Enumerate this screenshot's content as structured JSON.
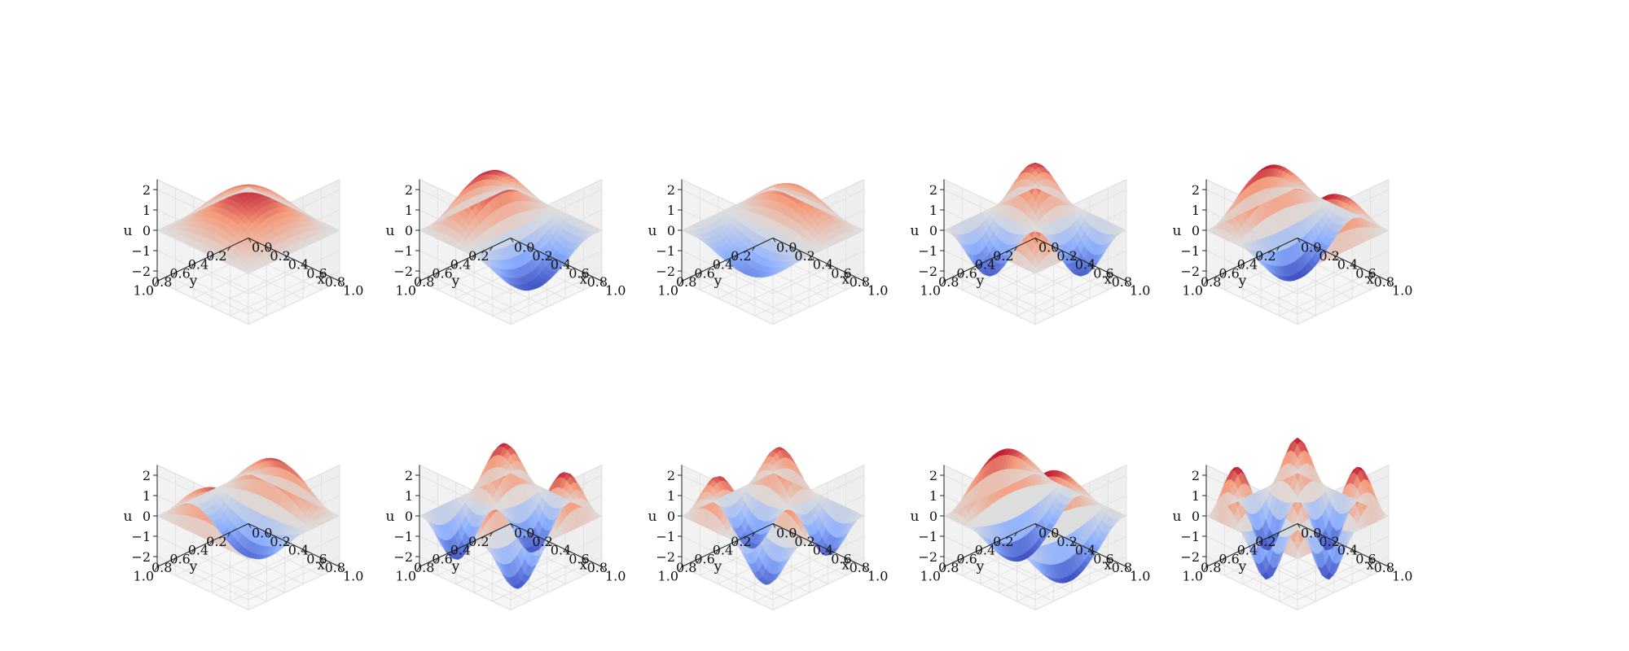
{
  "chart_data": [
    {
      "type": "surface3d",
      "panel": 1,
      "mode": [
        1,
        1
      ],
      "amplitude": 2.0,
      "xlabel": "x",
      "ylabel": "y",
      "zlabel": "u",
      "xlim": [
        0,
        1
      ],
      "ylim": [
        0,
        1
      ],
      "zlim": [
        -2.5,
        2.5
      ],
      "xticks": [
        "0.0",
        "0.2",
        "0.4",
        "0.6",
        "0.8",
        "1.0"
      ],
      "yticks": [
        "0.0",
        "0.2",
        "0.4",
        "0.6",
        "0.8",
        "1.0"
      ],
      "zticks": [
        "−2",
        "−1",
        "0",
        "1",
        "2"
      ],
      "colormap": "coolwarm",
      "grid": true
    },
    {
      "type": "surface3d",
      "panel": 2,
      "mode": [
        2,
        1
      ],
      "amplitude": 2.3,
      "xlabel": "x",
      "ylabel": "y",
      "zlabel": "u",
      "xlim": [
        0,
        1
      ],
      "ylim": [
        0,
        1
      ],
      "zlim": [
        -2.5,
        2.5
      ],
      "xticks": [
        "0.0",
        "0.2",
        "0.4",
        "0.6",
        "0.8",
        "1.0"
      ],
      "yticks": [
        "0.0",
        "0.2",
        "0.4",
        "0.6",
        "0.8",
        "1.0"
      ],
      "zticks": [
        "−2",
        "−1",
        "0",
        "1",
        "2"
      ],
      "colormap": "coolwarm",
      "grid": true
    },
    {
      "type": "surface3d",
      "panel": 3,
      "mode": [
        1,
        2
      ],
      "amplitude": 1.6,
      "xlabel": "x",
      "ylabel": "y",
      "zlabel": "u",
      "xlim": [
        0,
        1
      ],
      "ylim": [
        0,
        1
      ],
      "zlim": [
        -2.5,
        2.5
      ],
      "xticks": [
        "0.0",
        "0.2",
        "0.4",
        "0.6",
        "0.8",
        "1.0"
      ],
      "yticks": [
        "0.0",
        "0.2",
        "0.4",
        "0.6",
        "0.8",
        "1.0"
      ],
      "zticks": [
        "−2",
        "−1",
        "0",
        "1",
        "2"
      ],
      "colormap": "coolwarm",
      "grid": true
    },
    {
      "type": "surface3d",
      "panel": 4,
      "mode": [
        2,
        2
      ],
      "amplitude": 2.2,
      "xlabel": "x",
      "ylabel": "y",
      "zlabel": "u",
      "xlim": [
        0,
        1
      ],
      "ylim": [
        0,
        1
      ],
      "zlim": [
        -2.5,
        2.5
      ],
      "xticks": [
        "0.0",
        "0.2",
        "0.4",
        "0.6",
        "0.8",
        "1.0"
      ],
      "yticks": [
        "0.0",
        "0.2",
        "0.4",
        "0.6",
        "0.8",
        "1.0"
      ],
      "zticks": [
        "−2",
        "−1",
        "0",
        "1",
        "2"
      ],
      "colormap": "coolwarm",
      "grid": true
    },
    {
      "type": "surface3d",
      "panel": 5,
      "mode": [
        3,
        1
      ],
      "amplitude": 2.4,
      "xlabel": "x",
      "ylabel": "y",
      "zlabel": "u",
      "xlim": [
        0,
        1
      ],
      "ylim": [
        0,
        1
      ],
      "zlim": [
        -2.5,
        2.5
      ],
      "xticks": [
        "0.0",
        "0.2",
        "0.4",
        "0.6",
        "0.8",
        "1.0"
      ],
      "yticks": [
        "0.0",
        "0.2",
        "0.4",
        "0.6",
        "0.8",
        "1.0"
      ],
      "zticks": [
        "−2",
        "−1",
        "0",
        "1",
        "2"
      ],
      "colormap": "coolwarm",
      "grid": true
    },
    {
      "type": "surface3d",
      "panel": 6,
      "mode": [
        1,
        3
      ],
      "amplitude": 2.0,
      "xlabel": "x",
      "ylabel": "y",
      "zlabel": "u",
      "xlim": [
        0,
        1
      ],
      "ylim": [
        0,
        1
      ],
      "zlim": [
        -2.5,
        2.5
      ],
      "xticks": [
        "0.0",
        "0.2",
        "0.4",
        "0.6",
        "0.8",
        "1.0"
      ],
      "yticks": [
        "0.0",
        "0.2",
        "0.4",
        "0.6",
        "0.8",
        "1.0"
      ],
      "zticks": [
        "−2",
        "−1",
        "0",
        "1",
        "2"
      ],
      "colormap": "coolwarm",
      "grid": true
    },
    {
      "type": "surface3d",
      "panel": 7,
      "mode": [
        3,
        2
      ],
      "amplitude": 2.3,
      "xlabel": "x",
      "ylabel": "y",
      "zlabel": "u",
      "xlim": [
        0,
        1
      ],
      "ylim": [
        0,
        1
      ],
      "zlim": [
        -2.5,
        2.5
      ],
      "xticks": [
        "0.0",
        "0.2",
        "0.4",
        "0.6",
        "0.8",
        "1.0"
      ],
      "yticks": [
        "0.0",
        "0.2",
        "0.4",
        "0.6",
        "0.8",
        "1.0"
      ],
      "zticks": [
        "−2",
        "−1",
        "0",
        "1",
        "2"
      ],
      "colormap": "coolwarm",
      "grid": true
    },
    {
      "type": "surface3d",
      "panel": 8,
      "mode": [
        2,
        3
      ],
      "amplitude": 2.1,
      "xlabel": "x",
      "ylabel": "y",
      "zlabel": "u",
      "xlim": [
        0,
        1
      ],
      "ylim": [
        0,
        1
      ],
      "zlim": [
        -2.5,
        2.5
      ],
      "xticks": [
        "0.0",
        "0.2",
        "0.4",
        "0.6",
        "0.8",
        "1.0"
      ],
      "yticks": [
        "0.0",
        "0.2",
        "0.4",
        "0.6",
        "0.8",
        "1.0"
      ],
      "zticks": [
        "−2",
        "−1",
        "0",
        "1",
        "2"
      ],
      "colormap": "coolwarm",
      "grid": true
    },
    {
      "type": "surface3d",
      "panel": 9,
      "mode": [
        4,
        1
      ],
      "amplitude": 2.4,
      "xlabel": "x",
      "ylabel": "y",
      "zlabel": "u",
      "xlim": [
        0,
        1
      ],
      "ylim": [
        0,
        1
      ],
      "zlim": [
        -2.5,
        2.5
      ],
      "xticks": [
        "0.0",
        "0.2",
        "0.4",
        "0.6",
        "0.8",
        "1.0"
      ],
      "yticks": [
        "0.0",
        "0.2",
        "0.4",
        "0.6",
        "0.8",
        "1.0"
      ],
      "zticks": [
        "−2",
        "−1",
        "0",
        "1",
        "2"
      ],
      "colormap": "coolwarm",
      "grid": true
    },
    {
      "type": "surface3d",
      "panel": 10,
      "mode": [
        3,
        3
      ],
      "amplitude": 2.4,
      "xlabel": "x",
      "ylabel": "y",
      "zlabel": "u",
      "xlim": [
        0,
        1
      ],
      "ylim": [
        0,
        1
      ],
      "zlim": [
        -2.5,
        2.5
      ],
      "xticks": [
        "0.0",
        "0.2",
        "0.4",
        "0.6",
        "0.8",
        "1.0"
      ],
      "yticks": [
        "0.0",
        "0.2",
        "0.4",
        "0.6",
        "0.8",
        "1.0"
      ],
      "zticks": [
        "−2",
        "−1",
        "0",
        "1",
        "2"
      ],
      "colormap": "coolwarm",
      "grid": true
    }
  ]
}
